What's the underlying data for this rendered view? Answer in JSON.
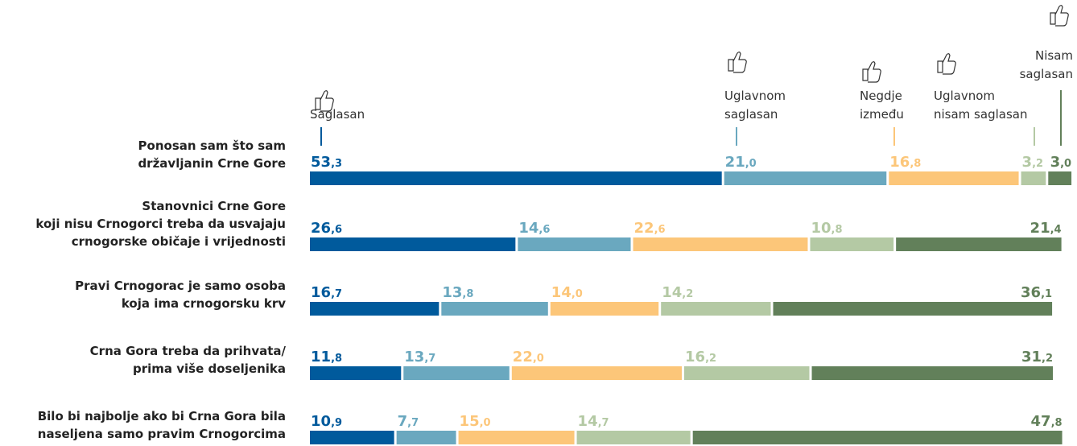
{
  "chart_data": {
    "type": "stacked-bar",
    "categories": [
      "Ponosan sam što sam\ndržavljanin Crne Gore",
      "Stanovnici Crne Gore\nkoji nisu Crnogorci treba da usvajaju\ncrnogorske običaje i vrijednosti",
      "Pravi Crnogorac je samo osoba\nkoja ima crnogorsku krv",
      "Crna Gora treba da prihvata/\nprima više doseljenika",
      "Bilo bi najbolje ako bi Crna Gora bila\nnaseljena samo pravim Crnogorcima"
    ],
    "series": [
      {
        "name": "Saglasan",
        "color": "#005a9c",
        "values": [
          53.3,
          26.6,
          16.7,
          11.8,
          10.9
        ],
        "value_labels": [
          "53,3",
          "26,6",
          "16,7",
          "11,8",
          "10,9"
        ]
      },
      {
        "name": "Uglavnom\nsaglasan",
        "color": "#6aa8bf",
        "values": [
          21.0,
          14.6,
          13.8,
          13.7,
          7.7
        ],
        "value_labels": [
          "21,0",
          "14,6",
          "13,8",
          "13,7",
          "7,7"
        ]
      },
      {
        "name": "Negdje\nizmeđu",
        "color": "#fcc679",
        "values": [
          16.8,
          22.6,
          14.0,
          22.0,
          15.0
        ],
        "value_labels": [
          "16,8",
          "22,6",
          "14,0",
          "22,0",
          "15,0"
        ]
      },
      {
        "name": "Uglavnom\nnisam saglasan",
        "color": "#b4c9a4",
        "values": [
          3.2,
          10.8,
          14.2,
          16.2,
          14.7
        ],
        "value_labels": [
          "3,2",
          "10,8",
          "14,2",
          "16,2",
          "14,7"
        ]
      },
      {
        "name": "Nisam\nsaglasan",
        "color": "#62805a",
        "values": [
          3.0,
          21.4,
          36.1,
          31.2,
          47.8
        ],
        "value_labels": [
          "3,0",
          "21,4",
          "36,1",
          "31,2",
          "47,8"
        ]
      }
    ]
  }
}
